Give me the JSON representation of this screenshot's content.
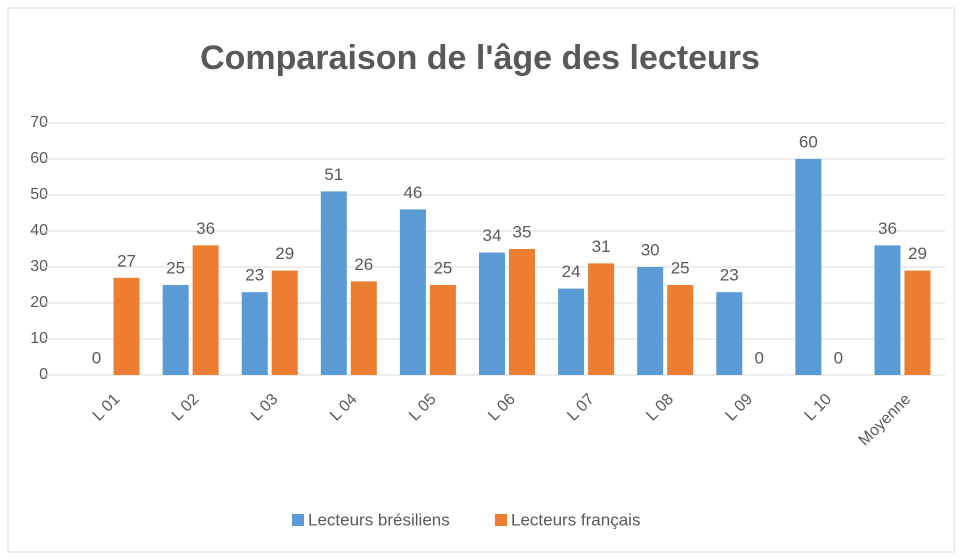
{
  "chart_data": {
    "type": "bar",
    "title": "Comparaison de l'âge des lecteurs",
    "categories": [
      "L 01",
      "L 02",
      "L 03",
      "L 04",
      "L 05",
      "L 06",
      "L 07",
      "L 08",
      "L 09",
      "L 10",
      "Moyenne"
    ],
    "series": [
      {
        "name": "Lecteurs brésiliens",
        "color": "#5b9bd5",
        "values": [
          0,
          25,
          23,
          51,
          46,
          34,
          24,
          30,
          23,
          60,
          36
        ]
      },
      {
        "name": "Lecteurs français",
        "color": "#ed7d31",
        "values": [
          27,
          36,
          29,
          26,
          25,
          35,
          31,
          25,
          0,
          0,
          29
        ]
      }
    ],
    "ylim": [
      0,
      70
    ],
    "yticks": [
      0,
      10,
      20,
      30,
      40,
      50,
      60,
      70
    ],
    "grid": true,
    "legend": "bottom"
  }
}
